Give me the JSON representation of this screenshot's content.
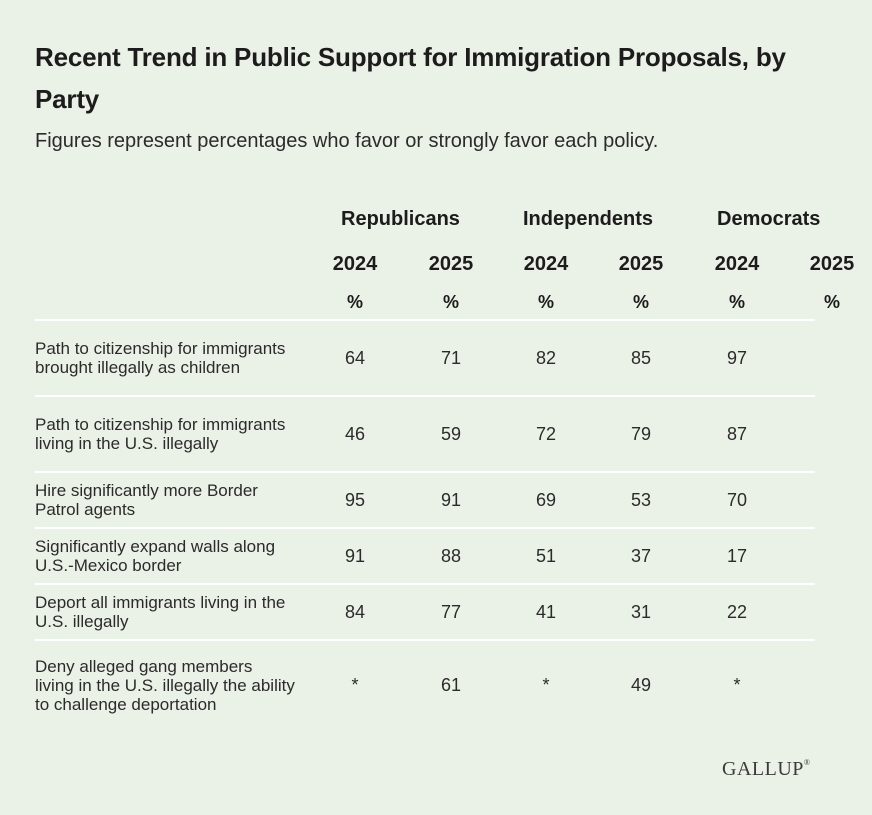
{
  "title": "Recent Trend in Public Support for Immigration Proposals, by Party",
  "subtitle": "Figures represent percentages who favor or strongly favor each policy.",
  "logo": "GALLUP",
  "chart_data": {
    "type": "table",
    "groups": [
      "Republicans",
      "Independents",
      "Democrats"
    ],
    "years": [
      "2024",
      "2025",
      "2024",
      "2025",
      "2024",
      "2025"
    ],
    "unit": "%",
    "rows": [
      {
        "label": "Path to citizenship for immigrants brought illegally as children",
        "values": [
          "64",
          "71",
          "82",
          "85",
          "97",
          ""
        ]
      },
      {
        "label": "Path to citizenship for immigrants living in the U.S. illegally",
        "values": [
          "46",
          "59",
          "72",
          "79",
          "87",
          ""
        ]
      },
      {
        "label": "Hire significantly more Border Patrol agents",
        "values": [
          "95",
          "91",
          "69",
          "53",
          "70",
          ""
        ]
      },
      {
        "label": "Significantly expand walls along U.S.-Mexico border",
        "values": [
          "91",
          "88",
          "51",
          "37",
          "17",
          ""
        ]
      },
      {
        "label": "Deport all immigrants living in the U.S. illegally",
        "values": [
          "84",
          "77",
          "41",
          "31",
          "22",
          ""
        ]
      },
      {
        "label": "Deny alleged gang members living in the U.S. illegally the ability to challenge deportation",
        "values": [
          "*",
          "61",
          "*",
          "49",
          "*",
          ""
        ]
      }
    ]
  }
}
